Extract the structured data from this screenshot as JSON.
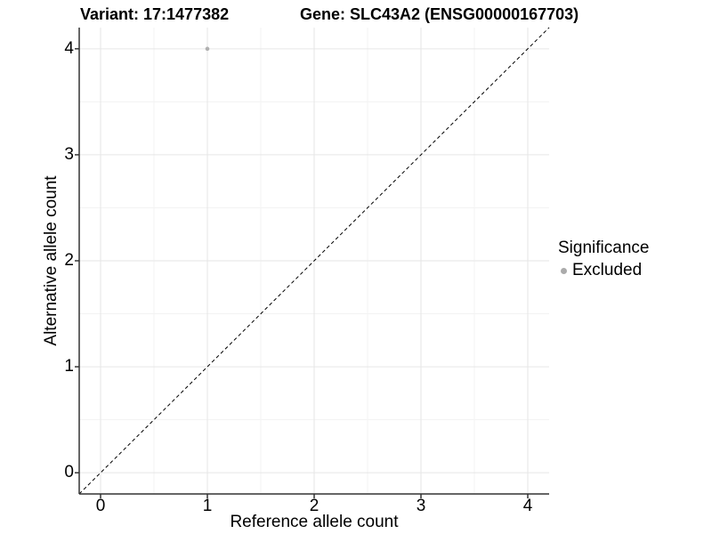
{
  "titles": {
    "variant": "Variant: 17:1477382",
    "gene": "Gene: SLC43A2 (ENSG00000167703)"
  },
  "axes": {
    "x_label": "Reference allele count",
    "y_label": "Alternative allele count"
  },
  "legend": {
    "title": "Significance",
    "entries": [
      {
        "label": "Excluded",
        "color": "#ababab"
      }
    ]
  },
  "colors": {
    "background": "#ffffff",
    "grid_major": "#e6e6e6",
    "grid_minor": "#f3f3f3",
    "axis_line": "#333333",
    "reference_line": "#000000",
    "excluded_point": "#b0b0b0"
  },
  "chart_data": {
    "type": "scatter",
    "title_left": "Variant: 17:1477382",
    "title_right": "Gene: SLC43A2 (ENSG00000167703)",
    "xlabel": "Reference allele count",
    "ylabel": "Alternative allele count",
    "xlim": [
      -0.2,
      4.2
    ],
    "ylim": [
      -0.2,
      4.2
    ],
    "x_ticks": [
      0,
      1,
      2,
      3,
      4
    ],
    "y_ticks": [
      0,
      1,
      2,
      3,
      4
    ],
    "minor_ticks": [
      0.5,
      1.5,
      2.5,
      3.5
    ],
    "grid": true,
    "legend_position": "right",
    "reference_line": {
      "kind": "identity",
      "style": "dashed",
      "from": [
        -0.2,
        -0.2
      ],
      "to": [
        4.2,
        4.2
      ]
    },
    "series": [
      {
        "name": "Excluded",
        "color": "#b0b0b0",
        "points": [
          {
            "x": 1,
            "y": 4
          }
        ]
      }
    ]
  }
}
